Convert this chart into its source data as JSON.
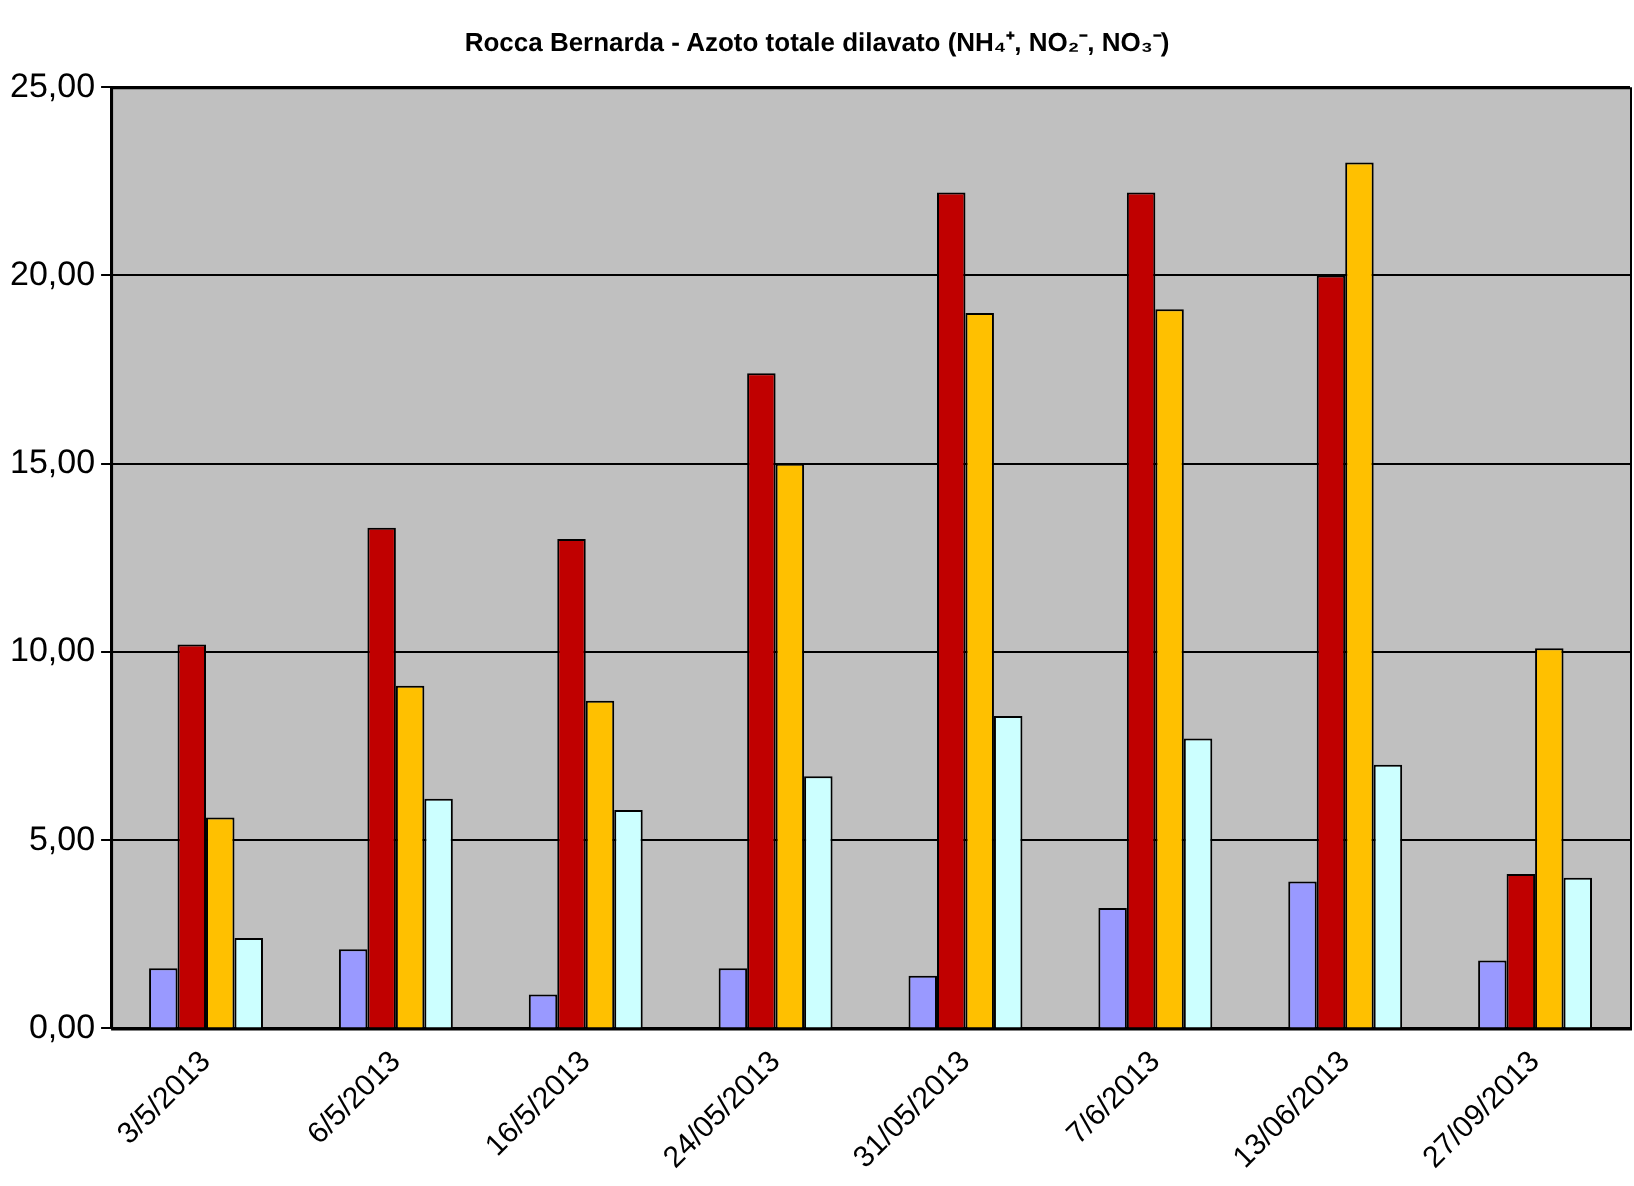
{
  "chart_data": {
    "type": "bar",
    "title": "Rocca Bernarda - Azoto totale dilavato (NH₄⁺, NO₂⁻, NO₃⁻)",
    "categories": [
      "3/5/2013",
      "6/5/2013",
      "16/5/2013",
      "24/05/2013",
      "31/05/2013",
      "7/6/2013",
      "13/06/2013",
      "27/09/2013"
    ],
    "series": [
      {
        "color": "#9999ff",
        "values": [
          1.6,
          2.1,
          0.9,
          1.6,
          1.4,
          3.2,
          3.9,
          1.8
        ]
      },
      {
        "color": "#c00000",
        "values": [
          10.2,
          13.3,
          13.0,
          17.4,
          22.2,
          22.2,
          20.0,
          4.1
        ]
      },
      {
        "color": "#ffc000",
        "values": [
          5.6,
          9.1,
          8.7,
          15.0,
          19.0,
          19.1,
          23.0,
          10.1
        ]
      },
      {
        "color": "#ccffff",
        "values": [
          2.4,
          6.1,
          5.8,
          6.7,
          8.3,
          7.7,
          7.0,
          4.0
        ]
      }
    ],
    "ylim": [
      0,
      25
    ],
    "yticks": [
      {
        "value": 0,
        "label": "0,00"
      },
      {
        "value": 5,
        "label": "5,00"
      },
      {
        "value": 10,
        "label": "10,00"
      },
      {
        "value": 15,
        "label": "15,00"
      },
      {
        "value": 20,
        "label": "20,00"
      },
      {
        "value": 25,
        "label": "25,00"
      }
    ],
    "grid": "y",
    "legend": false
  }
}
